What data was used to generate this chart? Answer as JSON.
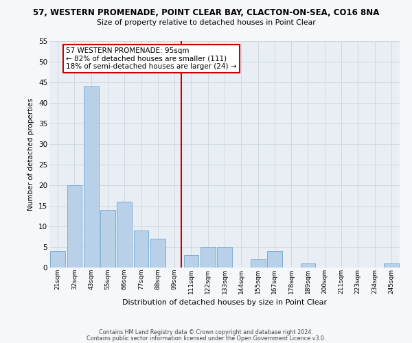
{
  "title": "57, WESTERN PROMENADE, POINT CLEAR BAY, CLACTON-ON-SEA, CO16 8NA",
  "subtitle": "Size of property relative to detached houses in Point Clear",
  "xlabel": "Distribution of detached houses by size in Point Clear",
  "ylabel": "Number of detached properties",
  "bar_labels": [
    "21sqm",
    "32sqm",
    "43sqm",
    "55sqm",
    "66sqm",
    "77sqm",
    "88sqm",
    "99sqm",
    "111sqm",
    "122sqm",
    "133sqm",
    "144sqm",
    "155sqm",
    "167sqm",
    "178sqm",
    "189sqm",
    "200sqm",
    "211sqm",
    "223sqm",
    "234sqm",
    "245sqm"
  ],
  "bar_values": [
    4,
    20,
    44,
    14,
    16,
    9,
    7,
    0,
    3,
    5,
    5,
    0,
    2,
    4,
    0,
    1,
    0,
    0,
    0,
    0,
    1
  ],
  "bar_color": "#b8d0e8",
  "bar_edgecolor": "#7aafd4",
  "property_line_color": "#cc0000",
  "annotation_text": "57 WESTERN PROMENADE: 95sqm\n← 82% of detached houses are smaller (111)\n18% of semi-detached houses are larger (24) →",
  "annotation_box_color": "#ffffff",
  "annotation_box_edgecolor": "#cc0000",
  "ylim": [
    0,
    55
  ],
  "yticks": [
    0,
    5,
    10,
    15,
    20,
    25,
    30,
    35,
    40,
    45,
    50,
    55
  ],
  "grid_color": "#d0d8e0",
  "bg_color": "#e8eef4",
  "fig_bg_color": "#f5f7fa",
  "footer_line1": "Contains HM Land Registry data © Crown copyright and database right 2024.",
  "footer_line2": "Contains public sector information licensed under the Open Government Licence v3.0."
}
